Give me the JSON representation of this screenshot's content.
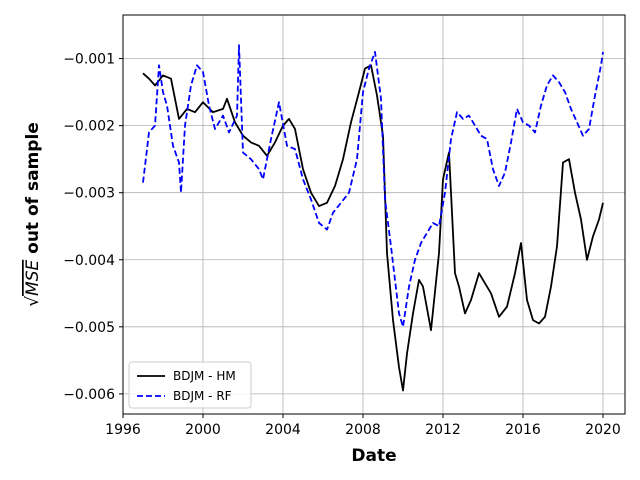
{
  "chart_data": {
    "type": "line",
    "xlabel": "Date",
    "ylabel_prefix": "√",
    "ylabel_radicand": "MSE",
    "ylabel_rest": " out of sample",
    "xlim": [
      1996.0,
      2021.1
    ],
    "ylim": [
      -0.0063,
      -0.00035
    ],
    "xticks": [
      1996,
      2000,
      2004,
      2008,
      2012,
      2016,
      2020
    ],
    "xtick_labels": [
      "1996",
      "2000",
      "2004",
      "2008",
      "2012",
      "2016",
      "2020"
    ],
    "yticks": [
      -0.006,
      -0.005,
      -0.004,
      -0.003,
      -0.002,
      -0.001
    ],
    "ytick_labels": [
      "−0.006",
      "−0.005",
      "−0.004",
      "−0.003",
      "−0.002",
      "−0.001"
    ],
    "grid": true,
    "legend_position": "lower-left",
    "series": [
      {
        "name": "BDJM - HM",
        "color": "#000000",
        "style": "solid",
        "x": [
          1997.0,
          1997.3,
          1997.6,
          1998.0,
          1998.4,
          1998.8,
          1999.2,
          1999.6,
          2000.0,
          2000.5,
          2001.0,
          2001.2,
          2001.6,
          2002.0,
          2002.4,
          2002.8,
          2003.2,
          2003.6,
          2004.0,
          2004.3,
          2004.6,
          2005.0,
          2005.4,
          2005.8,
          2006.2,
          2006.6,
          2007.0,
          2007.4,
          2007.8,
          2008.1,
          2008.4,
          2008.7,
          2009.0,
          2009.2,
          2009.5,
          2009.8,
          2010.0,
          2010.2,
          2010.5,
          2010.8,
          2011.0,
          2011.4,
          2011.8,
          2012.0,
          2012.3,
          2012.6,
          2012.8,
          2013.1,
          2013.4,
          2013.8,
          2014.0,
          2014.4,
          2014.8,
          2015.2,
          2015.6,
          2015.9,
          2016.2,
          2016.5,
          2016.8,
          2017.1,
          2017.4,
          2017.7,
          2018.0,
          2018.3,
          2018.6,
          2018.9,
          2019.2,
          2019.5,
          2019.8,
          2020.0
        ],
        "y": [
          -0.00122,
          -0.0013,
          -0.0014,
          -0.00125,
          -0.0013,
          -0.0019,
          -0.00175,
          -0.0018,
          -0.00165,
          -0.0018,
          -0.00175,
          -0.0016,
          -0.00195,
          -0.00215,
          -0.00225,
          -0.0023,
          -0.00245,
          -0.00225,
          -0.002,
          -0.0019,
          -0.00205,
          -0.00265,
          -0.003,
          -0.0032,
          -0.00315,
          -0.0029,
          -0.0025,
          -0.00195,
          -0.0015,
          -0.00115,
          -0.0011,
          -0.00155,
          -0.00215,
          -0.0039,
          -0.0049,
          -0.0056,
          -0.00595,
          -0.0054,
          -0.0048,
          -0.0043,
          -0.0044,
          -0.00505,
          -0.0039,
          -0.0028,
          -0.0024,
          -0.0042,
          -0.0044,
          -0.0048,
          -0.0046,
          -0.0042,
          -0.0043,
          -0.0045,
          -0.00485,
          -0.0047,
          -0.0042,
          -0.00375,
          -0.0046,
          -0.0049,
          -0.00495,
          -0.00485,
          -0.0044,
          -0.0038,
          -0.00255,
          -0.0025,
          -0.003,
          -0.0034,
          -0.004,
          -0.00365,
          -0.0034,
          -0.00315
        ]
      },
      {
        "name": "BDJM - RF",
        "color": "#0000ff",
        "style": "dashed",
        "x": [
          1997.0,
          1997.3,
          1997.6,
          1997.8,
          1998.0,
          1998.2,
          1998.5,
          1998.8,
          1998.9,
          1999.1,
          1999.4,
          1999.7,
          2000.0,
          2000.3,
          2000.6,
          2001.0,
          2001.3,
          2001.7,
          2001.8,
          2002.0,
          2002.4,
          2002.8,
          2003.0,
          2003.4,
          2003.8,
          2004.2,
          2004.6,
          2005.0,
          2005.4,
          2005.8,
          2006.2,
          2006.5,
          2006.9,
          2007.3,
          2007.7,
          2008.0,
          2008.3,
          2008.6,
          2008.9,
          2009.1,
          2009.4,
          2009.6,
          2009.8,
          2010.0,
          2010.3,
          2010.6,
          2010.9,
          2011.2,
          2011.5,
          2011.8,
          2012.1,
          2012.4,
          2012.7,
          2013.0,
          2013.3,
          2013.6,
          2013.9,
          2014.2,
          2014.5,
          2014.8,
          2015.1,
          2015.4,
          2015.7,
          2016.0,
          2016.3,
          2016.6,
          2016.9,
          2017.2,
          2017.5,
          2017.8,
          2018.1,
          2018.4,
          2018.7,
          2019.0,
          2019.3,
          2019.6,
          2019.9,
          2020.0
        ],
        "y": [
          -0.00285,
          -0.0021,
          -0.002,
          -0.0011,
          -0.0015,
          -0.0017,
          -0.0023,
          -0.00255,
          -0.003,
          -0.002,
          -0.0014,
          -0.0011,
          -0.0012,
          -0.0017,
          -0.00205,
          -0.00185,
          -0.0021,
          -0.00185,
          -0.0008,
          -0.0024,
          -0.0025,
          -0.00265,
          -0.0028,
          -0.0022,
          -0.00165,
          -0.0023,
          -0.00235,
          -0.0028,
          -0.0031,
          -0.00345,
          -0.00355,
          -0.0033,
          -0.00315,
          -0.003,
          -0.0025,
          -0.0015,
          -0.00115,
          -0.0009,
          -0.0016,
          -0.0031,
          -0.0038,
          -0.0043,
          -0.0048,
          -0.005,
          -0.0044,
          -0.004,
          -0.00375,
          -0.0036,
          -0.00345,
          -0.0035,
          -0.003,
          -0.0022,
          -0.0018,
          -0.0019,
          -0.00185,
          -0.002,
          -0.00215,
          -0.0022,
          -0.00265,
          -0.0029,
          -0.0027,
          -0.00225,
          -0.00175,
          -0.00195,
          -0.002,
          -0.0021,
          -0.0017,
          -0.0014,
          -0.00125,
          -0.00135,
          -0.0015,
          -0.00175,
          -0.00195,
          -0.00215,
          -0.00205,
          -0.00155,
          -0.0011,
          -0.0009
        ]
      }
    ]
  }
}
